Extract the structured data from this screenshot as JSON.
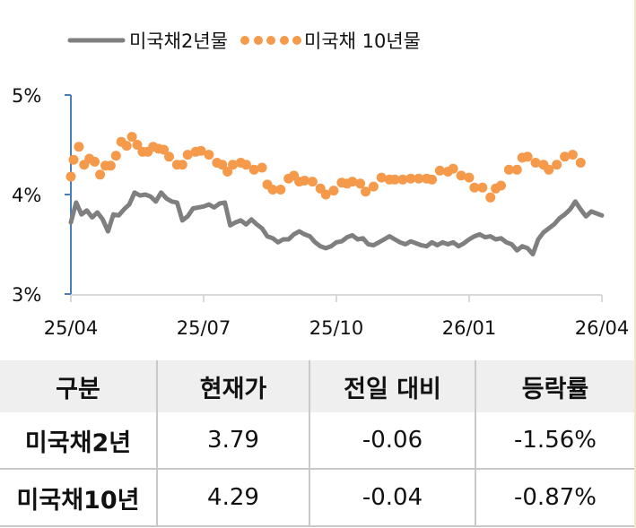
{
  "legend": {
    "series_2y": "미국채2년물",
    "series_10y": "미국채 10년물"
  },
  "colors": {
    "series_2y": "#7f7f7f",
    "series_10y": "#f59a4a",
    "y_axis": "#4a7ebb",
    "x_axis": "#d9d9d9",
    "table_header_bg": "#efefef",
    "table_border": "#c9c9c9"
  },
  "chart_data": {
    "type": "line",
    "title": "",
    "xlabel": "",
    "ylabel": "",
    "ylim": [
      3,
      5
    ],
    "y_ticks": [
      "5%",
      "4%",
      "3%"
    ],
    "x_ticks": [
      "25/04",
      "25/07",
      "25/10",
      "26/01",
      "26/04"
    ],
    "grid": false,
    "legend_position": "top",
    "series": [
      {
        "name": "미국채2년물",
        "style": "line",
        "x": [
          0,
          0.01,
          0.02,
          0.03,
          0.04,
          0.05,
          0.06,
          0.07,
          0.08,
          0.09,
          0.1,
          0.11,
          0.12,
          0.13,
          0.14,
          0.15,
          0.16,
          0.17,
          0.18,
          0.19,
          0.2,
          0.21,
          0.22,
          0.23,
          0.24,
          0.25,
          0.26,
          0.27,
          0.28,
          0.29,
          0.3,
          0.31,
          0.32,
          0.33,
          0.34,
          0.35,
          0.36,
          0.37,
          0.38,
          0.39,
          0.4,
          0.41,
          0.42,
          0.43,
          0.44,
          0.45,
          0.46,
          0.47,
          0.48,
          0.49,
          0.5,
          0.51,
          0.52,
          0.53,
          0.54,
          0.55,
          0.56,
          0.57,
          0.58,
          0.59,
          0.6,
          0.61,
          0.62,
          0.63,
          0.64,
          0.65,
          0.66,
          0.67,
          0.68,
          0.69,
          0.7,
          0.71,
          0.72,
          0.73,
          0.74,
          0.75,
          0.76,
          0.77,
          0.78,
          0.79,
          0.8,
          0.81,
          0.82,
          0.83,
          0.84,
          0.85,
          0.86,
          0.87,
          0.88,
          0.89,
          0.9,
          0.91,
          0.92,
          0.93,
          0.94,
          0.95,
          0.96,
          0.97,
          0.98,
          0.99,
          1.0
        ],
        "values": [
          3.72,
          3.92,
          3.8,
          3.84,
          3.77,
          3.82,
          3.75,
          3.63,
          3.8,
          3.79,
          3.85,
          3.9,
          4.02,
          3.99,
          4.0,
          3.98,
          3.93,
          4.02,
          3.96,
          3.93,
          3.92,
          3.74,
          3.78,
          3.86,
          3.87,
          3.88,
          3.9,
          3.87,
          3.91,
          3.92,
          3.69,
          3.72,
          3.74,
          3.7,
          3.75,
          3.7,
          3.66,
          3.58,
          3.56,
          3.52,
          3.55,
          3.55,
          3.6,
          3.63,
          3.6,
          3.58,
          3.52,
          3.48,
          3.46,
          3.48,
          3.52,
          3.53,
          3.57,
          3.59,
          3.55,
          3.56,
          3.5,
          3.49,
          3.52,
          3.55,
          3.58,
          3.55,
          3.52,
          3.5,
          3.53,
          3.51,
          3.49,
          3.48,
          3.52,
          3.49,
          3.52,
          3.5,
          3.52,
          3.48,
          3.51,
          3.55,
          3.58,
          3.6,
          3.57,
          3.58,
          3.55,
          3.56,
          3.52,
          3.5,
          3.44,
          3.48,
          3.46,
          3.4,
          3.55,
          3.62,
          3.66,
          3.7,
          3.76,
          3.8,
          3.85,
          3.93,
          3.85,
          3.78,
          3.83,
          3.81,
          3.79
        ]
      },
      {
        "name": "미국채 10년물",
        "style": "dots",
        "x": [
          0,
          0.005,
          0.015,
          0.025,
          0.035,
          0.045,
          0.055,
          0.065,
          0.075,
          0.085,
          0.095,
          0.105,
          0.115,
          0.125,
          0.135,
          0.145,
          0.155,
          0.165,
          0.175,
          0.185,
          0.2,
          0.21,
          0.22,
          0.235,
          0.245,
          0.26,
          0.275,
          0.285,
          0.295,
          0.305,
          0.32,
          0.33,
          0.345,
          0.36,
          0.37,
          0.38,
          0.395,
          0.41,
          0.42,
          0.43,
          0.44,
          0.455,
          0.47,
          0.48,
          0.495,
          0.51,
          0.52,
          0.53,
          0.545,
          0.555,
          0.57,
          0.585,
          0.6,
          0.61,
          0.625,
          0.64,
          0.655,
          0.67,
          0.68,
          0.695,
          0.71,
          0.72,
          0.735,
          0.75,
          0.76,
          0.775,
          0.79,
          0.8,
          0.81,
          0.825,
          0.84,
          0.85,
          0.86,
          0.875,
          0.89,
          0.9,
          0.915,
          0.93,
          0.945,
          0.96
        ],
        "values": [
          4.18,
          4.35,
          4.48,
          4.3,
          4.36,
          4.33,
          4.2,
          4.29,
          4.29,
          4.39,
          4.53,
          4.49,
          4.58,
          4.5,
          4.43,
          4.43,
          4.48,
          4.46,
          4.45,
          4.38,
          4.3,
          4.3,
          4.4,
          4.43,
          4.44,
          4.4,
          4.32,
          4.3,
          4.23,
          4.3,
          4.32,
          4.3,
          4.25,
          4.27,
          4.1,
          4.05,
          4.05,
          4.16,
          4.19,
          4.13,
          4.14,
          4.13,
          4.06,
          4.0,
          4.04,
          4.12,
          4.11,
          4.13,
          4.11,
          4.03,
          4.08,
          4.17,
          4.15,
          4.15,
          4.15,
          4.16,
          4.16,
          4.16,
          4.15,
          4.24,
          4.23,
          4.26,
          4.19,
          4.17,
          4.07,
          4.07,
          3.97,
          4.06,
          4.09,
          4.25,
          4.25,
          4.37,
          4.38,
          4.32,
          4.3,
          4.25,
          4.3,
          4.38,
          4.4,
          4.32
        ]
      }
    ]
  },
  "table": {
    "headers": [
      "구분",
      "현재가",
      "전일 대비",
      "등락률"
    ],
    "rows": [
      {
        "label": "미국채2년",
        "price": "3.79",
        "change": "-0.06",
        "rate": "-1.56%"
      },
      {
        "label": "미국채10년",
        "price": "4.29",
        "change": "-0.04",
        "rate": "-0.87%"
      }
    ]
  }
}
